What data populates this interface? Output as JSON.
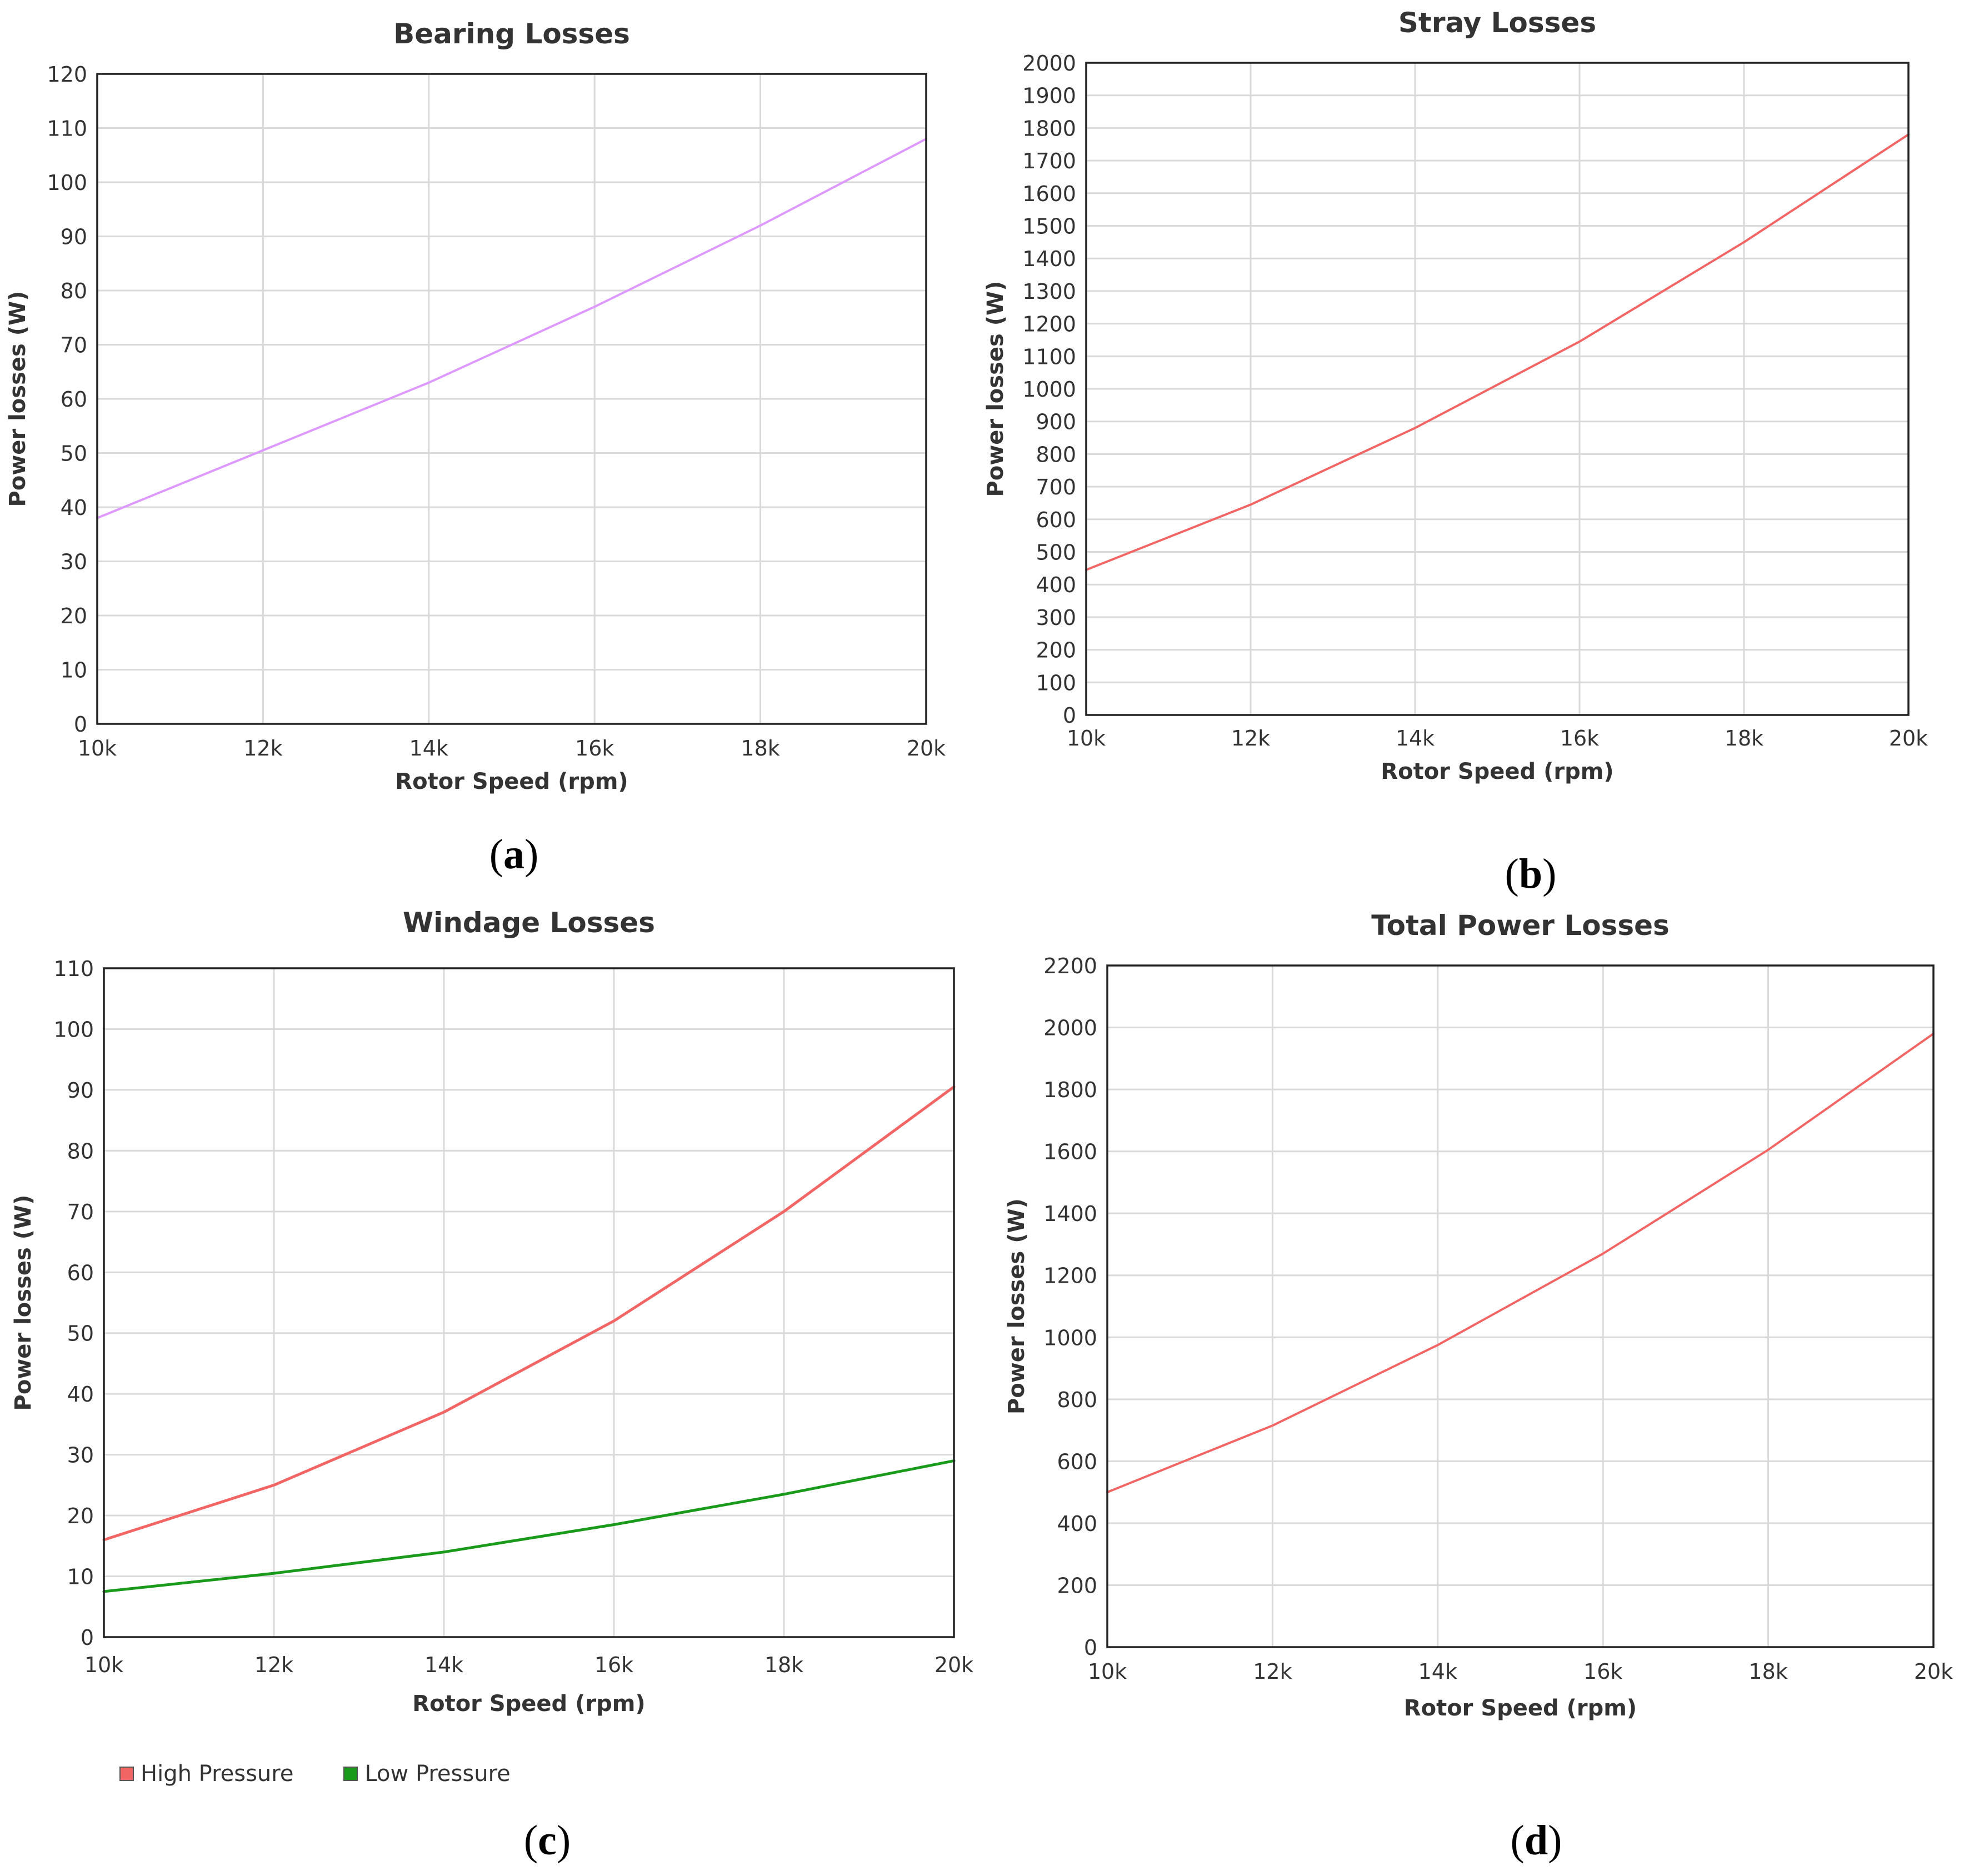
{
  "colors": {
    "grid": "#d9d9d9",
    "frame": "#222222",
    "text": "#333333",
    "bearing_line": "#dd99ff",
    "red_line": "#f26565",
    "green_line": "#1a9a1a"
  },
  "captions": {
    "a": "a",
    "b": "b",
    "c": "c",
    "d": "d"
  },
  "legend": {
    "high": "High Pressure",
    "low": "Low Pressure"
  },
  "chart_data": [
    {
      "id": "a",
      "type": "line",
      "title": "Bearing Losses",
      "xlabel": "Rotor Speed (rpm)",
      "ylabel": "Power losses (W)",
      "xlim": [
        10000,
        20000
      ],
      "ylim": [
        0,
        120
      ],
      "xticks": [
        10000,
        12000,
        14000,
        16000,
        18000,
        20000
      ],
      "xtick_labels": [
        "10k",
        "12k",
        "14k",
        "16k",
        "18k",
        "20k"
      ],
      "yticks": [
        0,
        10,
        20,
        30,
        40,
        50,
        60,
        70,
        80,
        90,
        100,
        110,
        120
      ],
      "ytick_labels": [
        "0",
        "10",
        "20",
        "30",
        "40",
        "50",
        "60",
        "70",
        "80",
        "90",
        "100",
        "110",
        "120"
      ],
      "grid": true,
      "series": [
        {
          "name": "Bearing Losses",
          "color_key": "bearing_line",
          "width": 4,
          "x": [
            10000,
            12000,
            14000,
            16000,
            18000,
            20000
          ],
          "y": [
            38,
            50.5,
            63,
            77,
            92,
            108
          ]
        }
      ]
    },
    {
      "id": "b",
      "type": "line",
      "title": "Stray Losses",
      "xlabel": "Rotor Speed (rpm)",
      "ylabel": "Power losses (W)",
      "xlim": [
        10000,
        20000
      ],
      "ylim": [
        0,
        2000
      ],
      "xticks": [
        10000,
        12000,
        14000,
        16000,
        18000,
        20000
      ],
      "xtick_labels": [
        "10k",
        "12k",
        "14k",
        "16k",
        "18k",
        "20k"
      ],
      "yticks": [
        0,
        100,
        200,
        300,
        400,
        500,
        600,
        700,
        800,
        900,
        1000,
        1100,
        1200,
        1300,
        1400,
        1500,
        1600,
        1700,
        1800,
        1900,
        2000
      ],
      "ytick_labels": [
        "0",
        "100",
        "200",
        "300",
        "400",
        "500",
        "600",
        "700",
        "800",
        "900",
        "1000",
        "1100",
        "1200",
        "1300",
        "1400",
        "1500",
        "1600",
        "1700",
        "1800",
        "1900",
        "2000"
      ],
      "grid": true,
      "series": [
        {
          "name": "Stray Losses",
          "color_key": "red_line",
          "width": 4,
          "x": [
            10000,
            12000,
            14000,
            16000,
            18000,
            20000
          ],
          "y": [
            445,
            645,
            880,
            1145,
            1450,
            1780
          ]
        }
      ]
    },
    {
      "id": "c",
      "type": "line",
      "title": "Windage  Losses",
      "xlabel": "Rotor Speed (rpm)",
      "ylabel": "Power losses (W)",
      "xlim": [
        10000,
        20000
      ],
      "ylim": [
        0,
        110
      ],
      "xticks": [
        10000,
        12000,
        14000,
        16000,
        18000,
        20000
      ],
      "xtick_labels": [
        "10k",
        "12k",
        "14k",
        "16k",
        "18k",
        "20k"
      ],
      "yticks": [
        0,
        10,
        20,
        30,
        40,
        50,
        60,
        70,
        80,
        90,
        100,
        110
      ],
      "ytick_labels": [
        "0",
        "10",
        "20",
        "30",
        "40",
        "50",
        "60",
        "70",
        "80",
        "90",
        "100",
        "110"
      ],
      "grid": true,
      "legend": "bottom-left",
      "series": [
        {
          "name": "High Pressure",
          "color_key": "red_line",
          "width": 5,
          "x": [
            10000,
            12000,
            14000,
            16000,
            18000,
            20000
          ],
          "y": [
            16,
            25,
            37,
            52,
            70,
            90.5
          ]
        },
        {
          "name": "Low Pressure",
          "color_key": "green_line",
          "width": 5,
          "x": [
            10000,
            12000,
            14000,
            16000,
            18000,
            20000
          ],
          "y": [
            7.5,
            10.5,
            14,
            18.5,
            23.5,
            29
          ]
        }
      ]
    },
    {
      "id": "d",
      "type": "line",
      "title": "Total Power  Losses",
      "xlabel": "Rotor Speed (rpm)",
      "ylabel": "Power losses (W)",
      "xlim": [
        10000,
        20000
      ],
      "ylim": [
        0,
        2200
      ],
      "xticks": [
        10000,
        12000,
        14000,
        16000,
        18000,
        20000
      ],
      "xtick_labels": [
        "10k",
        "12k",
        "14k",
        "16k",
        "18k",
        "20k"
      ],
      "yticks": [
        0,
        200,
        400,
        600,
        800,
        1000,
        1200,
        1400,
        1600,
        1800,
        2000,
        2200
      ],
      "ytick_labels": [
        "0",
        "200",
        "400",
        "600",
        "800",
        "1000",
        "1200",
        "1400",
        "1600",
        "1800",
        "2000",
        "2200"
      ],
      "grid": true,
      "series": [
        {
          "name": "Total Power Losses",
          "color_key": "red_line",
          "width": 4,
          "x": [
            10000,
            12000,
            14000,
            16000,
            18000,
            20000
          ],
          "y": [
            500,
            715,
            975,
            1270,
            1605,
            1980
          ]
        }
      ]
    }
  ]
}
